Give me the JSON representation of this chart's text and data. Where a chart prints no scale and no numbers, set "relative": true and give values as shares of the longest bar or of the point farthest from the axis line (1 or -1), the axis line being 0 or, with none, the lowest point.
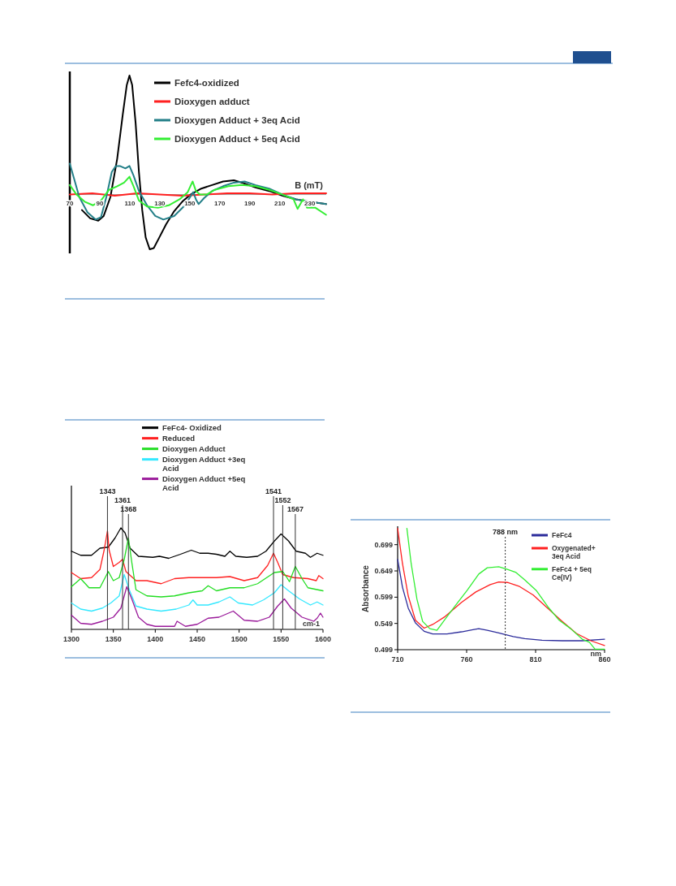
{
  "chart_data": [
    {
      "type": "line",
      "relative": true,
      "xlabel": "B (mT)",
      "xlim": [
        70,
        241
      ],
      "xticks": [
        70,
        90,
        110,
        130,
        150,
        170,
        190,
        210,
        230
      ],
      "legend": "top right",
      "series": [
        {
          "name": "Fefc4-oxidized",
          "color": "#000000",
          "x": [
            78.1,
            83.6,
            89.0,
            92.6,
            97.1,
            101.6,
            105.3,
            108.0,
            109.8,
            111.6,
            113.9,
            116.1,
            118.3,
            120.6,
            123.3,
            126.0,
            129.7,
            134.2,
            139.6,
            145.0,
            150.5,
            157.7,
            164.9,
            172.2,
            179.4,
            184.8,
            193.8,
            202.9,
            211.9,
            220.9,
            230.0,
            240.9
          ],
          "values": [
            -0.13,
            -0.2,
            -0.22,
            -0.18,
            -0.02,
            0.3,
            0.67,
            0.92,
            1.0,
            0.92,
            0.6,
            0.19,
            -0.13,
            -0.36,
            -0.46,
            -0.45,
            -0.36,
            -0.25,
            -0.14,
            -0.06,
            0.0,
            0.05,
            0.08,
            0.11,
            0.12,
            0.1,
            0.06,
            0.03,
            -0.01,
            -0.04,
            -0.06,
            -0.08
          ]
        },
        {
          "name": "Dioxygen adduct",
          "color": "#ff2020",
          "x": [
            70,
            85,
            100,
            115,
            130,
            145,
            160,
            175,
            190,
            205,
            220,
            241
          ],
          "values": [
            0.0,
            0.01,
            -0.01,
            0.01,
            0.0,
            -0.01,
            0.0,
            0.01,
            0.01,
            0.0,
            0.01,
            0.01
          ]
        },
        {
          "name": "Dioxygen Adduct + 3eq Acid",
          "color": "#237f88",
          "x": [
            70.0,
            72.7,
            76.3,
            81.8,
            87.2,
            90.8,
            94.4,
            98.0,
            100.7,
            103.4,
            107.1,
            109.8,
            112.5,
            116.1,
            121.5,
            127.0,
            132.4,
            139.6,
            146.8,
            152.3,
            154.1,
            155.9,
            159.5,
            164.9,
            172.2,
            179.4,
            186.6,
            193.8,
            202.9,
            211.9,
            220.9,
            230.0,
            240.9
          ],
          "values": [
            0.26,
            0.14,
            -0.02,
            -0.15,
            -0.21,
            -0.19,
            -0.02,
            0.19,
            0.24,
            0.24,
            0.22,
            0.24,
            0.16,
            0.03,
            -0.09,
            -0.18,
            -0.21,
            -0.18,
            -0.09,
            0.02,
            -0.04,
            -0.08,
            -0.03,
            0.03,
            0.07,
            0.1,
            0.11,
            0.08,
            0.05,
            0.0,
            -0.04,
            -0.06,
            -0.08
          ]
        },
        {
          "name": "Dioxygen Adduct + 5eq Acid",
          "color": "#33ee33",
          "x": [
            70.0,
            74.5,
            79.9,
            85.4,
            90.8,
            96.2,
            101.6,
            106.2,
            109.8,
            112.5,
            116.1,
            121.5,
            128.8,
            136.0,
            143.2,
            148.6,
            151.9,
            154.1,
            156.8,
            161.3,
            166.7,
            175.8,
            184.8,
            193.8,
            202.9,
            211.9,
            219.2,
            221.9,
            225.5,
            228.2,
            233.6,
            240.9
          ],
          "values": [
            0.08,
            0.0,
            -0.06,
            -0.09,
            -0.05,
            0.04,
            0.07,
            0.1,
            0.15,
            0.07,
            -0.05,
            -0.1,
            -0.11,
            -0.09,
            -0.04,
            0.02,
            0.11,
            0.03,
            0.0,
            0.0,
            0.04,
            0.07,
            0.08,
            0.07,
            0.04,
            0.0,
            -0.04,
            -0.12,
            -0.04,
            -0.11,
            -0.11,
            -0.17
          ]
        }
      ]
    },
    {
      "type": "line",
      "relative": true,
      "xlabel": "cm-1",
      "xlim": [
        1300,
        1600
      ],
      "xticks": [
        1300,
        1350,
        1400,
        1450,
        1500,
        1550,
        1600
      ],
      "legend": "top",
      "ref_lines": [
        {
          "axis": "x",
          "value": 1343,
          "label": "1343"
        },
        {
          "axis": "x",
          "value": 1361,
          "label": "1361"
        },
        {
          "axis": "x",
          "value": 1368,
          "label": "1368"
        },
        {
          "axis": "x",
          "value": 1541,
          "label": "1541"
        },
        {
          "axis": "x",
          "value": 1552,
          "label": "1552"
        },
        {
          "axis": "x",
          "value": 1567,
          "label": "1567"
        }
      ],
      "series": [
        {
          "name": "FeFc4- Oxidized",
          "color": "#000000",
          "x": [
            1300,
            1311,
            1324,
            1334,
            1344,
            1352,
            1359,
            1364,
            1370,
            1380,
            1397,
            1405,
            1416,
            1430,
            1443,
            1453,
            1463,
            1473,
            1483,
            1489,
            1496,
            1509,
            1522,
            1532,
            1542,
            1550,
            1559,
            1568,
            1579,
            1585,
            1593,
            1600
          ],
          "values": [
            0.77,
            0.73,
            0.73,
            0.8,
            0.81,
            0.9,
            1.0,
            0.95,
            0.8,
            0.72,
            0.71,
            0.72,
            0.7,
            0.74,
            0.78,
            0.75,
            0.75,
            0.74,
            0.72,
            0.77,
            0.72,
            0.71,
            0.72,
            0.77,
            0.87,
            0.94,
            0.87,
            0.77,
            0.75,
            0.71,
            0.75,
            0.73
          ]
        },
        {
          "name": "Reduced",
          "color": "#ff2020",
          "x": [
            1300,
            1311,
            1324,
            1334,
            1339,
            1343,
            1345,
            1350,
            1357,
            1361,
            1365,
            1377,
            1390,
            1407,
            1423,
            1440,
            1456,
            1473,
            1489,
            1506,
            1522,
            1534,
            1541,
            1546,
            1552,
            1565,
            1582,
            1592,
            1595,
            1600
          ],
          "values": [
            0.56,
            0.5,
            0.51,
            0.59,
            0.78,
            0.97,
            0.78,
            0.62,
            0.66,
            0.69,
            0.57,
            0.48,
            0.48,
            0.45,
            0.5,
            0.51,
            0.51,
            0.51,
            0.52,
            0.48,
            0.51,
            0.63,
            0.75,
            0.66,
            0.54,
            0.51,
            0.5,
            0.48,
            0.53,
            0.5
          ]
        },
        {
          "name": "Dioxygen Adduct",
          "color": "#22dd22",
          "x": [
            1300,
            1311,
            1321,
            1334,
            1344,
            1350,
            1357,
            1363,
            1368,
            1372,
            1377,
            1390,
            1407,
            1423,
            1440,
            1456,
            1463,
            1473,
            1489,
            1506,
            1522,
            1542,
            1552,
            1557,
            1560,
            1567,
            1575,
            1582,
            1600
          ],
          "values": [
            0.42,
            0.5,
            0.41,
            0.41,
            0.57,
            0.48,
            0.51,
            0.69,
            0.9,
            0.66,
            0.39,
            0.33,
            0.32,
            0.33,
            0.36,
            0.38,
            0.43,
            0.38,
            0.41,
            0.41,
            0.45,
            0.56,
            0.57,
            0.51,
            0.47,
            0.62,
            0.5,
            0.41,
            0.38
          ]
        },
        {
          "name": "Dioxygen Adduct +3eq Acid",
          "color": "#33e8ff",
          "x": [
            1300,
            1311,
            1324,
            1337,
            1347,
            1357,
            1363,
            1369,
            1377,
            1390,
            1407,
            1425,
            1440,
            1445,
            1450,
            1463,
            1476,
            1489,
            1499,
            1516,
            1529,
            1542,
            1550,
            1559,
            1572,
            1585,
            1593,
            1600
          ],
          "values": [
            0.26,
            0.2,
            0.18,
            0.21,
            0.26,
            0.33,
            0.54,
            0.39,
            0.23,
            0.2,
            0.18,
            0.2,
            0.24,
            0.29,
            0.24,
            0.24,
            0.27,
            0.32,
            0.26,
            0.24,
            0.29,
            0.36,
            0.44,
            0.38,
            0.3,
            0.24,
            0.27,
            0.24
          ]
        },
        {
          "name": "Dioxygen Adduct +5eq Acid",
          "color": "#9a1a9a",
          "x": [
            1300,
            1311,
            1324,
            1337,
            1350,
            1359,
            1366,
            1372,
            1380,
            1390,
            1400,
            1410,
            1423,
            1426,
            1436,
            1450,
            1463,
            1476,
            1493,
            1506,
            1522,
            1536,
            1546,
            1554,
            1562,
            1575,
            1589,
            1593,
            1597,
            1600
          ],
          "values": [
            0.14,
            0.06,
            0.05,
            0.08,
            0.12,
            0.21,
            0.42,
            0.3,
            0.12,
            0.05,
            0.03,
            0.03,
            0.03,
            0.08,
            0.03,
            0.05,
            0.11,
            0.12,
            0.18,
            0.09,
            0.08,
            0.12,
            0.23,
            0.3,
            0.21,
            0.12,
            0.08,
            0.11,
            0.16,
            0.12
          ]
        }
      ]
    },
    {
      "type": "line",
      "xlabel": "nm",
      "ylabel": "Absorbance",
      "xlim": [
        710,
        860
      ],
      "xticks": [
        710,
        760,
        810,
        860
      ],
      "ylim": [
        0.499,
        0.731
      ],
      "yticks": [
        0.499,
        0.549,
        0.599,
        0.649,
        0.699
      ],
      "legend": "top right",
      "ref_lines": [
        {
          "axis": "x",
          "value": 788,
          "label": "788 nm",
          "line_style": "dotted"
        }
      ],
      "series": [
        {
          "name": "FeFc4",
          "color": "#2b2b9b",
          "x": [
            710,
            713.5,
            717.7,
            722.9,
            729.2,
            735.4,
            745.8,
            756.3,
            764.6,
            768.8,
            775.0,
            783.3,
            793.8,
            802.1,
            814.6,
            829.2,
            843.8,
            860
          ],
          "values": [
            0.671,
            0.618,
            0.578,
            0.55,
            0.534,
            0.529,
            0.529,
            0.533,
            0.537,
            0.539,
            0.536,
            0.531,
            0.524,
            0.52,
            0.517,
            0.516,
            0.516,
            0.519
          ]
        },
        {
          "name": "Oxygenated+ 3eq Acid",
          "color": "#ff2020",
          "x": [
            710,
            713.5,
            717.7,
            722.9,
            729.2,
            735.4,
            743.8,
            756.3,
            766.7,
            777.1,
            783.3,
            789.6,
            797.9,
            808.3,
            818.8,
            829.2,
            839.6,
            850,
            860
          ],
          "values": [
            0.73,
            0.663,
            0.601,
            0.555,
            0.54,
            0.547,
            0.561,
            0.589,
            0.609,
            0.623,
            0.628,
            0.627,
            0.62,
            0.603,
            0.578,
            0.553,
            0.53,
            0.516,
            0.507
          ]
        },
        {
          "name": "FeFc4 + 5eq Ce(IV)",
          "color": "#33ee33",
          "x": [
            716.7,
            719.8,
            724.0,
            728.1,
            733.3,
            738.5,
            743.8,
            752.1,
            760.4,
            768.8,
            775.0,
            783.3,
            789.6,
            795.8,
            802.1,
            810.4,
            818.8,
            827.1,
            835.4,
            843.8,
            849.0,
            853.1,
            860
          ],
          "values": [
            0.73,
            0.663,
            0.595,
            0.553,
            0.539,
            0.536,
            0.555,
            0.584,
            0.612,
            0.643,
            0.655,
            0.657,
            0.652,
            0.646,
            0.632,
            0.612,
            0.581,
            0.555,
            0.539,
            0.519,
            0.513,
            0.5,
            0.5
          ]
        }
      ]
    }
  ]
}
